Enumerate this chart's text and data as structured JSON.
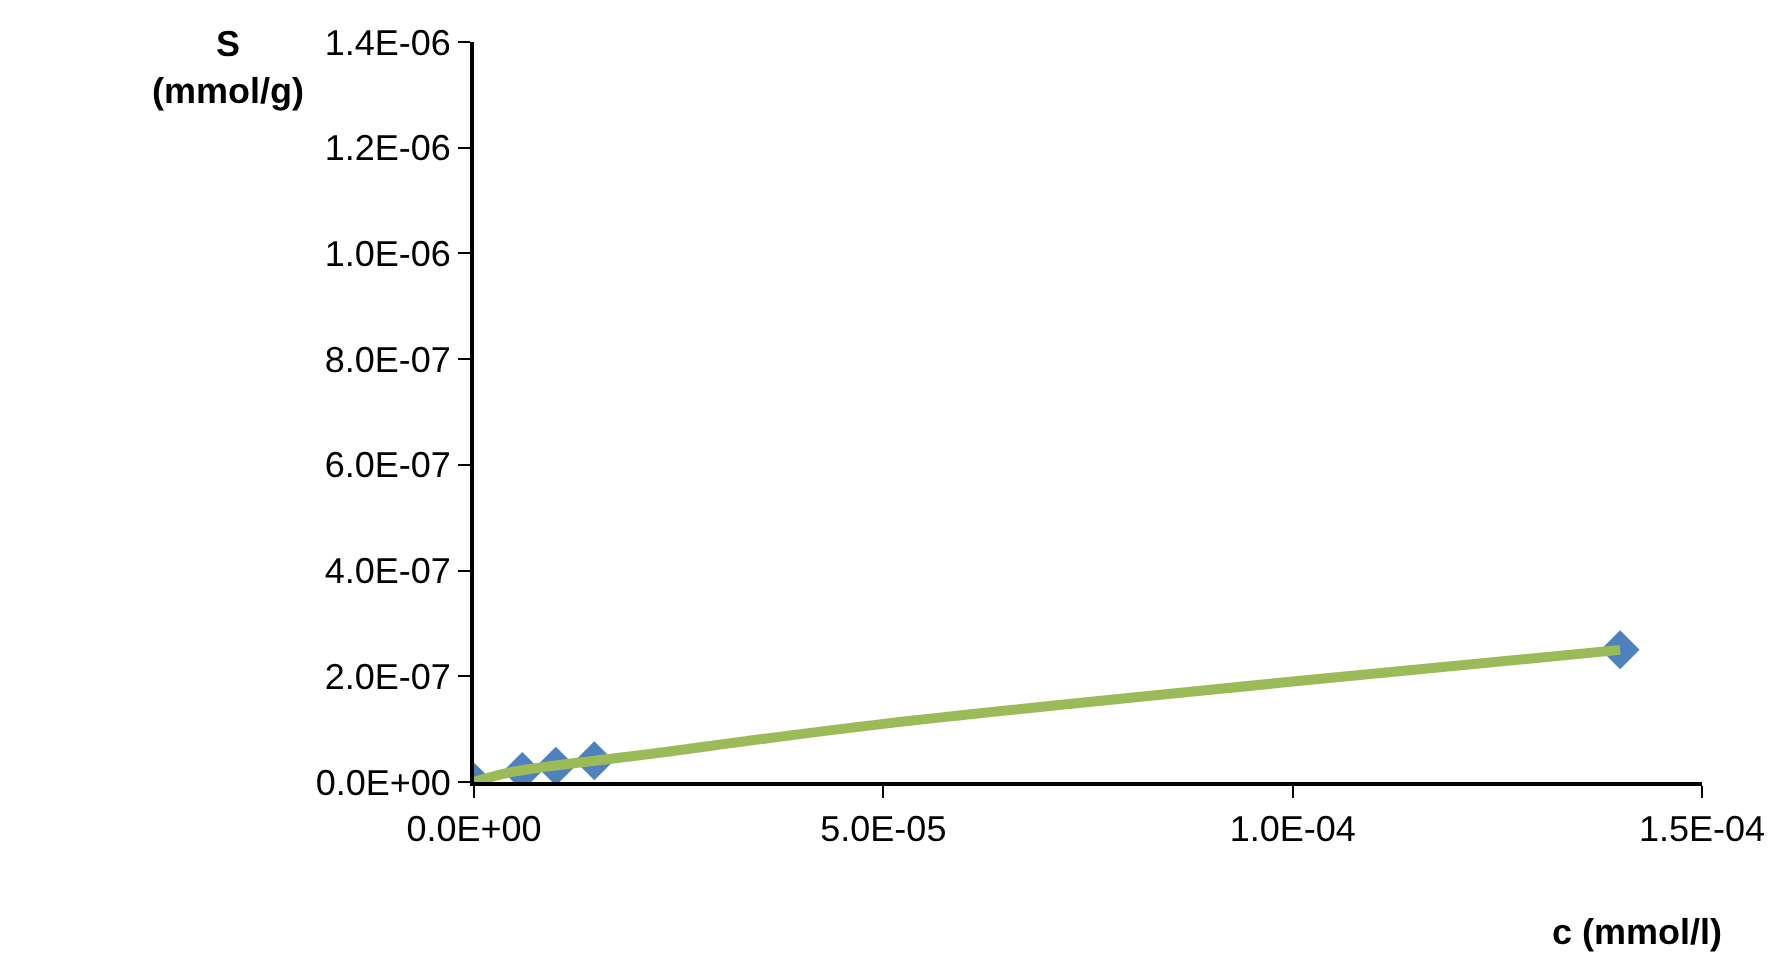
{
  "chart_data": {
    "type": "scatter",
    "xlabel": "c (mmol/l)",
    "ylabel": "S\n(mmol/g)",
    "series": [
      {
        "color": "#4f81bd",
        "marker": "diamond",
        "x": [
          0,
          5.9e-06,
          1e-05,
          1.47e-05,
          0.00014
        ],
        "values": [
          0,
          2e-08,
          3e-08,
          4e-08,
          2.5e-07
        ]
      },
      {
        "type": "line",
        "color": "#9bbb59",
        "marker": "none",
        "x": [
          0,
          5e-06,
          2e-05,
          5e-05,
          0.0001,
          0.00014
        ],
        "values": [
          0,
          2e-08,
          5e-08,
          1.1e-07,
          1.9e-07,
          2.5e-07
        ]
      }
    ],
    "xlim": [
      0,
      0.00015
    ],
    "xticks": [
      {
        "value": 0,
        "label": "0.0E+00"
      },
      {
        "value": 5e-05,
        "label": "5.0E-05"
      },
      {
        "value": 0.0001,
        "label": "1.0E-04"
      },
      {
        "value": 0.00015,
        "label": "1.5E-04"
      }
    ],
    "ylim": [
      0,
      1.4e-06
    ],
    "yticks": [
      {
        "value": 0,
        "label": "0.0E+00"
      },
      {
        "value": 2e-07,
        "label": "2.0E-07"
      },
      {
        "value": 4e-07,
        "label": "4.0E-07"
      },
      {
        "value": 6e-07,
        "label": "6.0E-07"
      },
      {
        "value": 8e-07,
        "label": "8.0E-07"
      },
      {
        "value": 1e-06,
        "label": "1.0E-06"
      },
      {
        "value": 1.2e-06,
        "label": "1.2E-06"
      },
      {
        "value": 1.4e-06,
        "label": "1.4E-06"
      }
    ]
  }
}
